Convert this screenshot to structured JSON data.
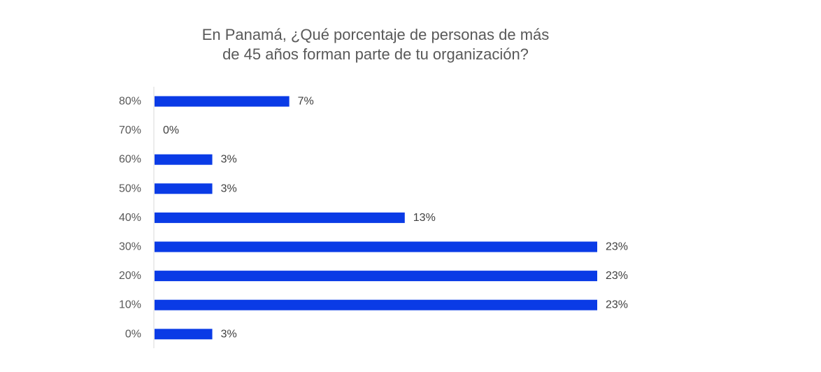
{
  "chart_data": {
    "type": "bar",
    "orientation": "horizontal",
    "title_lines": [
      "En Panamá, ¿Qué porcentaje de personas de más",
      "de 45 años forman parte de tu organización?"
    ],
    "categories": [
      "80%",
      "70%",
      "60%",
      "50%",
      "40%",
      "30%",
      "20%",
      "10%",
      "0%"
    ],
    "values": [
      7,
      0,
      3,
      3,
      13,
      23,
      23,
      23,
      3
    ],
    "value_labels": [
      "7%",
      "0%",
      "3%",
      "3%",
      "13%",
      "23%",
      "23%",
      "23%",
      "3%"
    ],
    "value_unit": "%",
    "xlim": [
      0,
      23
    ],
    "grid": false,
    "legend": "none",
    "bar_color": "#0a3be6",
    "axis_color": "#d9d9d9"
  }
}
